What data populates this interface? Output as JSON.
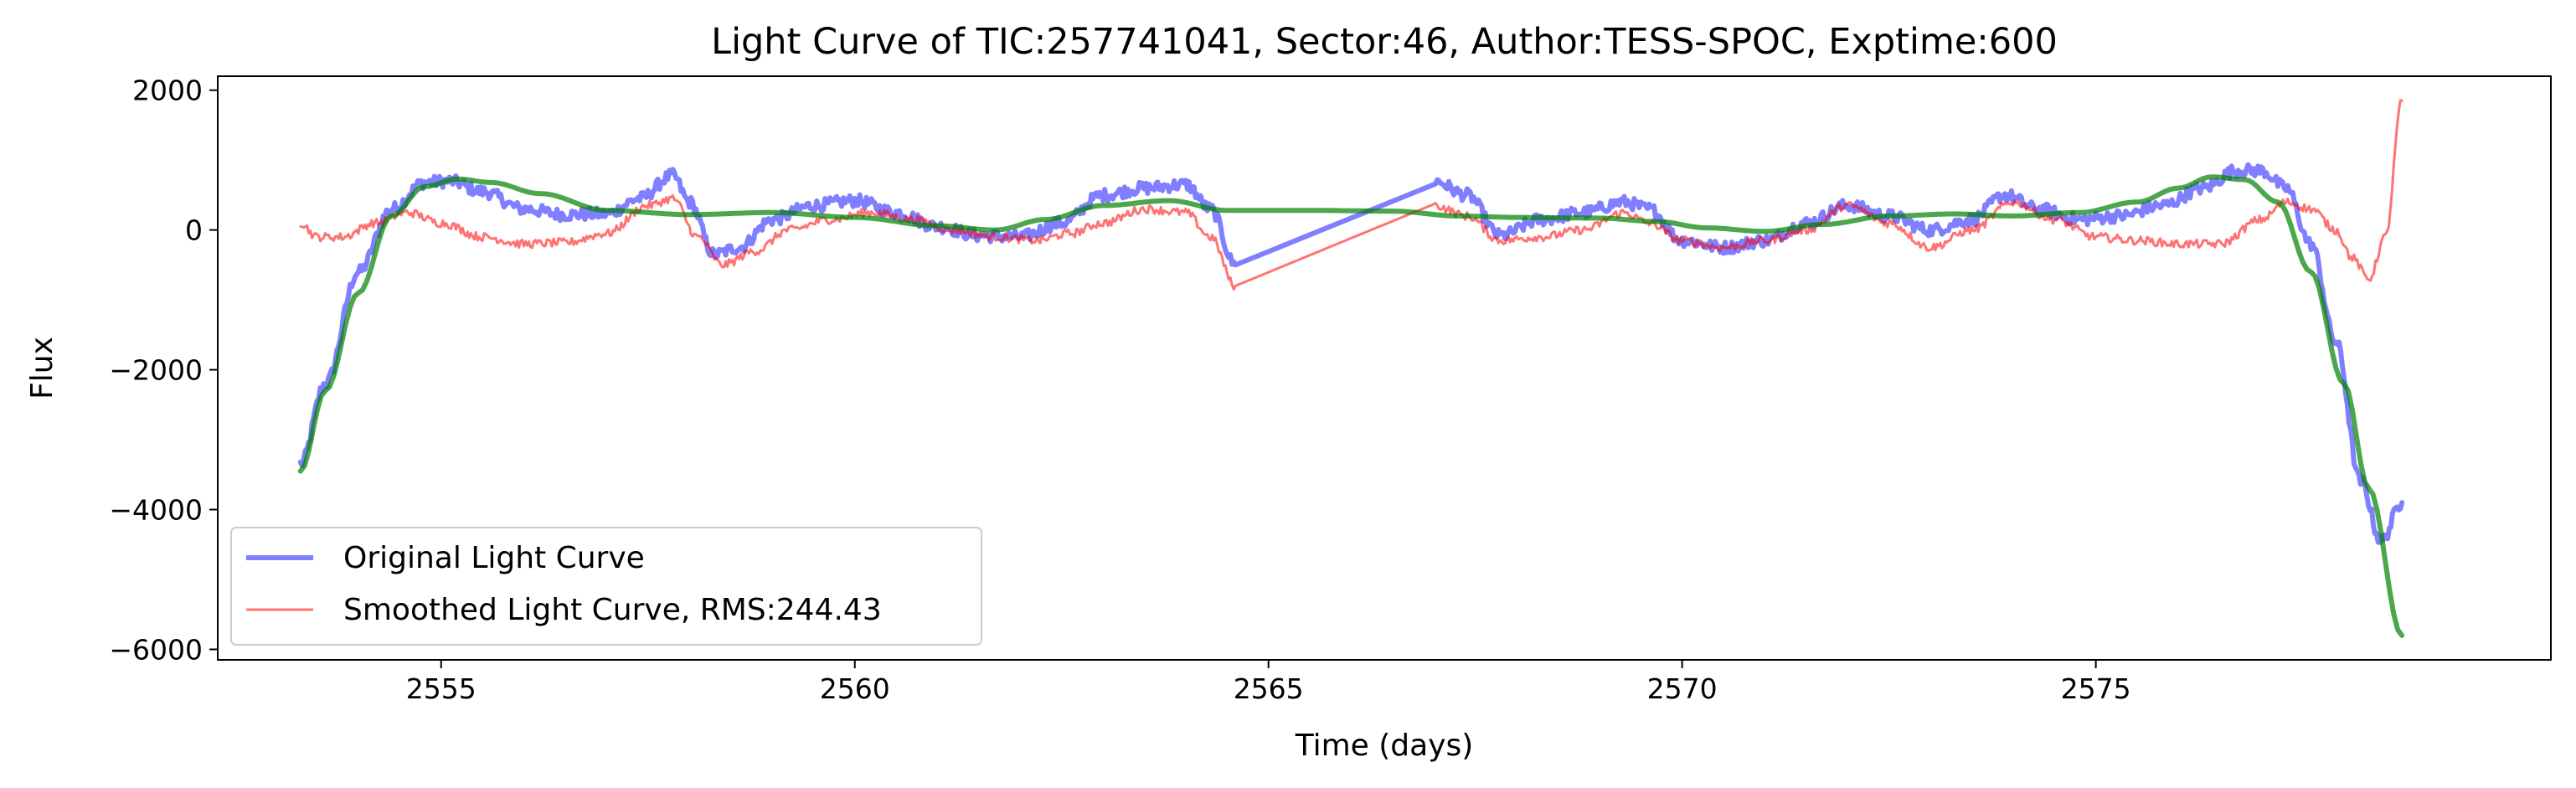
{
  "chart_data": {
    "type": "line",
    "title": "Light Curve of TIC:257741041, Sector:46, Author:TESS-SPOC, Exptime:600",
    "xlabel": "Time (days)",
    "ylabel": "Flux",
    "xlim": [
      2552.3,
      2580.5
    ],
    "ylim": [
      -6150,
      2200
    ],
    "xticks": [
      2555,
      2560,
      2565,
      2570,
      2575
    ],
    "yticks": [
      2000,
      0,
      -2000,
      -4000,
      -6000
    ],
    "grid": false,
    "legend_position": "lower-left",
    "series": [
      {
        "name": "Original Light Curve",
        "color": "#0000ff",
        "opacity": 0.5,
        "noise": 90,
        "x": [
          2553.3,
          2553.6,
          2554.0,
          2554.4,
          2554.8,
          2555.1,
          2555.5,
          2556.0,
          2556.5,
          2557.0,
          2557.4,
          2557.8,
          2558.0,
          2558.3,
          2558.6,
          2559.0,
          2559.5,
          2560.0,
          2560.5,
          2561.0,
          2561.5,
          2562.0,
          2562.5,
          2563.0,
          2563.5,
          2564.0,
          2564.3,
          2564.6,
          2567.0,
          2567.4,
          2567.8,
          2568.3,
          2568.8,
          2569.3,
          2569.6,
          2570.0,
          2570.5,
          2571.0,
          2571.5,
          2572.0,
          2572.5,
          2573.0,
          2573.5,
          2573.9,
          2574.3,
          2574.8,
          2575.3,
          2575.8,
          2576.3,
          2576.7,
          2577.0,
          2577.3,
          2577.6,
          2577.9,
          2578.2,
          2578.45,
          2578.7
        ],
        "y": [
          -3350,
          -2200,
          -600,
          300,
          680,
          700,
          550,
          300,
          220,
          230,
          450,
          780,
          400,
          -350,
          -250,
          150,
          350,
          420,
          250,
          50,
          -80,
          -100,
          100,
          500,
          600,
          650,
          300,
          -500,
          700,
          500,
          -80,
          150,
          250,
          400,
          300,
          -150,
          -250,
          -150,
          100,
          350,
          200,
          0,
          150,
          500,
          300,
          150,
          200,
          350,
          600,
          850,
          850,
          600,
          -200,
          -1600,
          -3600,
          -4450,
          -3900
        ]
      },
      {
        "name": "Smoothed Light Curve, RMS:244.43",
        "color": "#ff0000",
        "opacity": 0.55,
        "noise": 60,
        "x": [
          2553.3,
          2553.5,
          2553.8,
          2554.2,
          2554.6,
          2555.0,
          2555.5,
          2556.0,
          2556.5,
          2557.0,
          2557.5,
          2557.8,
          2558.1,
          2558.4,
          2558.8,
          2559.2,
          2559.7,
          2560.2,
          2560.7,
          2561.2,
          2561.7,
          2562.2,
          2562.6,
          2563.0,
          2563.5,
          2564.0,
          2564.3,
          2564.6,
          2567.0,
          2567.4,
          2567.8,
          2568.3,
          2568.8,
          2569.3,
          2569.6,
          2570.0,
          2570.5,
          2571.0,
          2571.5,
          2572.0,
          2572.5,
          2573.0,
          2573.5,
          2574.0,
          2574.5,
          2575.0,
          2575.5,
          2576.0,
          2576.5,
          2577.0,
          2577.3,
          2577.6,
          2577.9,
          2578.1,
          2578.3,
          2578.5,
          2578.7
        ],
        "y": [
          100,
          -100,
          -100,
          100,
          250,
          100,
          -100,
          -200,
          -180,
          -50,
          350,
          450,
          -100,
          -500,
          -300,
          0,
          150,
          250,
          150,
          0,
          -100,
          -150,
          -50,
          100,
          300,
          250,
          -100,
          -800,
          350,
          200,
          -150,
          -100,
          0,
          250,
          100,
          -150,
          -250,
          -150,
          0,
          350,
          100,
          -250,
          0,
          400,
          150,
          -100,
          -150,
          -200,
          -200,
          150,
          400,
          300,
          0,
          -400,
          -700,
          -100,
          1850
        ]
      },
      {
        "name": "",
        "color": "#008000",
        "opacity": 0.7,
        "noise": 0,
        "x": [
          2553.3,
          2553.6,
          2554.0,
          2554.4,
          2554.8,
          2555.2,
          2555.6,
          2556.2,
          2557.0,
          2558.0,
          2559.0,
          2560.0,
          2561.0,
          2561.7,
          2562.3,
          2563.0,
          2563.8,
          2564.5,
          2565.5,
          2566.5,
          2567.3,
          2568.0,
          2569.0,
          2569.7,
          2570.3,
          2571.0,
          2571.7,
          2572.5,
          2573.3,
          2574.0,
          2574.8,
          2575.5,
          2576.0,
          2576.4,
          2576.8,
          2577.2,
          2577.6,
          2578.0,
          2578.3,
          2578.7
        ],
        "y": [
          -3450,
          -2300,
          -900,
          200,
          620,
          730,
          680,
          520,
          280,
          220,
          250,
          180,
          60,
          0,
          150,
          350,
          420,
          280,
          280,
          270,
          200,
          180,
          170,
          120,
          30,
          -20,
          80,
          200,
          230,
          200,
          250,
          400,
          600,
          760,
          720,
          400,
          -600,
          -2200,
          -3700,
          -5800
        ]
      }
    ]
  }
}
